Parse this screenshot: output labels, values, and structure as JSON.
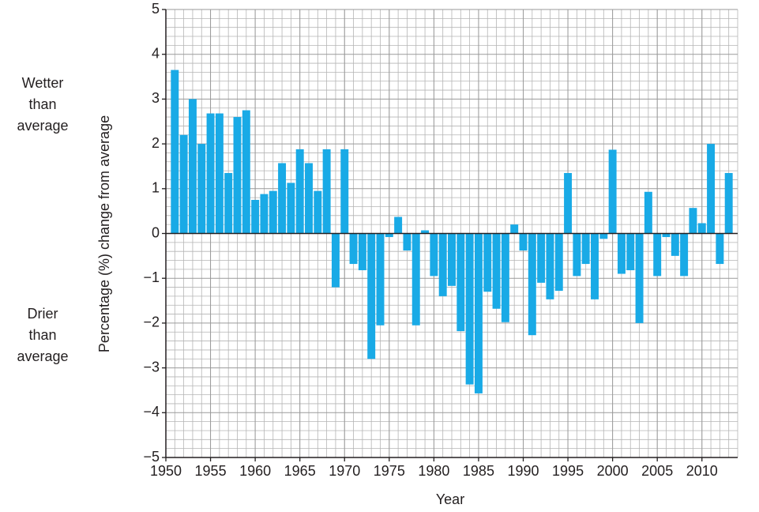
{
  "chart_data": {
    "type": "bar",
    "x_label": "Year",
    "y_label": "Percentage (%) change from average",
    "annotations": [
      {
        "lines": [
          "Wetter",
          "than",
          "average"
        ]
      },
      {
        "lines": [
          "Drier",
          "than",
          "average"
        ]
      }
    ],
    "x": [
      1951,
      1952,
      1953,
      1954,
      1955,
      1956,
      1957,
      1958,
      1959,
      1960,
      1961,
      1962,
      1963,
      1964,
      1965,
      1966,
      1967,
      1968,
      1969,
      1970,
      1971,
      1972,
      1973,
      1974,
      1975,
      1976,
      1977,
      1978,
      1979,
      1980,
      1981,
      1982,
      1983,
      1984,
      1985,
      1986,
      1987,
      1988,
      1989,
      1990,
      1991,
      1992,
      1993,
      1994,
      1995,
      1996,
      1997,
      1998,
      1999,
      2000,
      2001,
      2002,
      2003,
      2004,
      2005,
      2006,
      2007,
      2008,
      2009,
      2010,
      2011,
      2012,
      2013
    ],
    "values": [
      3.65,
      2.2,
      3.0,
      2.0,
      2.68,
      2.68,
      1.35,
      2.6,
      2.75,
      0.75,
      0.88,
      0.95,
      1.57,
      1.13,
      1.88,
      1.57,
      0.95,
      1.88,
      -1.2,
      1.88,
      -0.68,
      -0.82,
      -2.8,
      -2.05,
      -0.08,
      0.37,
      -0.38,
      -2.05,
      0.07,
      -0.95,
      -1.4,
      -1.17,
      -2.18,
      -3.37,
      -3.57,
      -1.3,
      -1.68,
      -1.98,
      0.2,
      -0.38,
      -2.27,
      -1.1,
      -1.47,
      -1.28,
      1.35,
      -0.95,
      -0.68,
      -1.47,
      -0.12,
      1.87,
      -0.9,
      -0.82,
      -2.0,
      0.93,
      -0.95,
      -0.08,
      -0.5,
      -0.95,
      0.57,
      0.23,
      2.0,
      -0.68,
      1.35
    ],
    "color": "#19aae6",
    "xlim": [
      1950,
      2014
    ],
    "xticks": [
      1950,
      1955,
      1960,
      1965,
      1970,
      1975,
      1980,
      1985,
      1990,
      1995,
      2000,
      2005,
      2010
    ],
    "ylim": [
      -5,
      5
    ],
    "yticks": [
      {
        "value": -5,
        "label": "−5"
      },
      {
        "value": -4,
        "label": "−4"
      },
      {
        "value": -3,
        "label": "−3"
      },
      {
        "value": -2,
        "label": "−2"
      },
      {
        "value": -1,
        "label": "−1"
      },
      0,
      1,
      2,
      3,
      4,
      5
    ],
    "grid": true
  }
}
